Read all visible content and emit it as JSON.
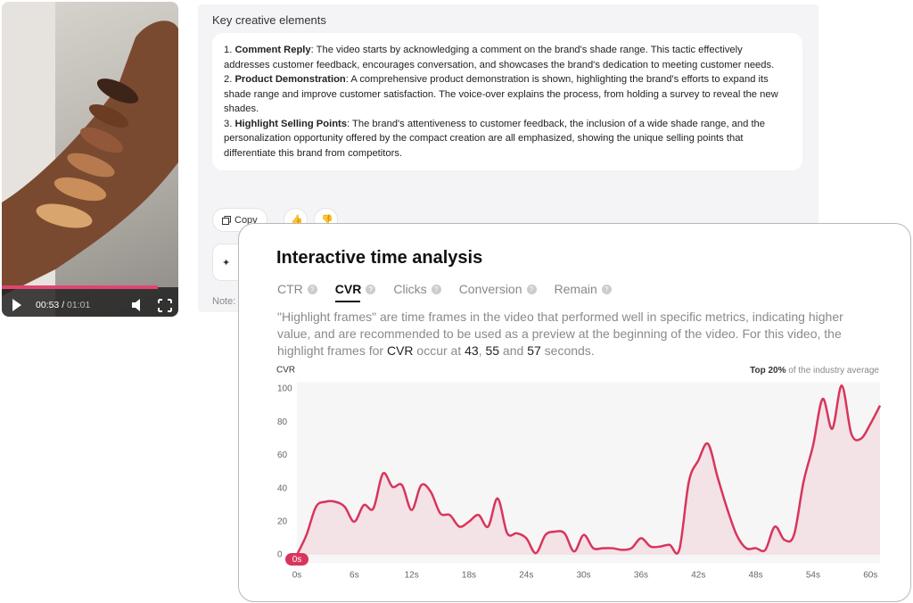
{
  "video": {
    "current": "00:53",
    "separator": "/",
    "duration": "01:01"
  },
  "panel": {
    "title": "Key creative elements",
    "items": [
      {
        "number": "1.",
        "title": "Comment Reply",
        "text": ": The video starts by acknowledging a comment on the brand's shade range. This tactic effectively addresses customer feedback, encourages conversation, and showcases the brand's dedication to meeting customer needs."
      },
      {
        "number": "2.",
        "title": "Product Demonstration",
        "text": ": A comprehensive product demonstration is shown, highlighting the brand's efforts to expand its shade range and improve customer satisfaction. The voice-over explains the process, from holding a survey to reveal the new shades."
      },
      {
        "number": "3.",
        "title": "Highlight Selling Points",
        "text": ": The brand's attentiveness to customer feedback, the inclusion of a wide shade range, and the personalization opportunity offered by the compact creation are all emphasized, showing the unique selling points that differentiate this brand from competitors."
      }
    ],
    "copy": "Copy",
    "note": "Note:"
  },
  "card": {
    "title": "Interactive time analysis",
    "tabs": [
      "CTR",
      "CVR",
      "Clicks",
      "Conversion",
      "Remain"
    ],
    "active_tab": 1,
    "description": [
      {
        "text": "\"Highlight frames\" are time frames in the video that performed well in specific metrics, indicating higher value, and are recommended to be used as a preview at the beginning of the video. For this video, the highlight frames for ",
        "bold": false
      },
      {
        "text": "CVR",
        "bold": true
      },
      {
        "text": " occur at ",
        "bold": false
      },
      {
        "text": "43",
        "bold": true
      },
      {
        "text": ", ",
        "bold": false
      },
      {
        "text": "55",
        "bold": true
      },
      {
        "text": " and ",
        "bold": false
      },
      {
        "text": "57",
        "bold": true
      },
      {
        "text": " seconds.",
        "bold": false
      }
    ]
  },
  "chart_data": {
    "type": "line",
    "y_label": "CVR",
    "legend": {
      "strong": "Top 20%",
      "text": " of the industry average"
    },
    "playhead_label": "0s",
    "color": "#d8355c",
    "x": [
      0,
      1,
      2,
      3,
      4,
      5,
      6,
      7,
      8,
      9,
      10,
      11,
      12,
      13,
      14,
      15,
      16,
      17,
      18,
      19,
      20,
      21,
      22,
      23,
      24,
      25,
      26,
      27,
      28,
      29,
      30,
      31,
      32,
      33,
      34,
      35,
      36,
      37,
      38,
      39,
      40,
      41,
      42,
      43,
      44,
      45,
      46,
      47,
      48,
      49,
      50,
      51,
      52,
      53,
      54,
      55,
      56,
      57,
      58,
      59,
      60,
      61
    ],
    "values": [
      0,
      12,
      29,
      32,
      32,
      29,
      20,
      30,
      28,
      49,
      41,
      42,
      27,
      42,
      38,
      25,
      24,
      17,
      20,
      24,
      17,
      34,
      13,
      13,
      10,
      1,
      12,
      14,
      13,
      2,
      12,
      4,
      4,
      4,
      3,
      4,
      10,
      5,
      5,
      6,
      3,
      44,
      57,
      67,
      47,
      28,
      12,
      4,
      4,
      3,
      17,
      9,
      12,
      44,
      66,
      94,
      76,
      102,
      73,
      70,
      79,
      90
    ],
    "xlim": [
      0,
      61
    ],
    "ylim": [
      -5,
      104
    ],
    "xticks": [
      {
        "value": 0,
        "label": "0s"
      },
      {
        "value": 6,
        "label": "6s"
      },
      {
        "value": 12,
        "label": "12s"
      },
      {
        "value": 18,
        "label": "18s"
      },
      {
        "value": 24,
        "label": "24s"
      },
      {
        "value": 30,
        "label": "30s"
      },
      {
        "value": 36,
        "label": "36s"
      },
      {
        "value": 42,
        "label": "42s"
      },
      {
        "value": 48,
        "label": "48s"
      },
      {
        "value": 54,
        "label": "54s"
      },
      {
        "value": 60,
        "label": "60s"
      }
    ],
    "yticks": [
      0,
      20,
      40,
      60,
      80,
      100
    ],
    "grid": false
  }
}
